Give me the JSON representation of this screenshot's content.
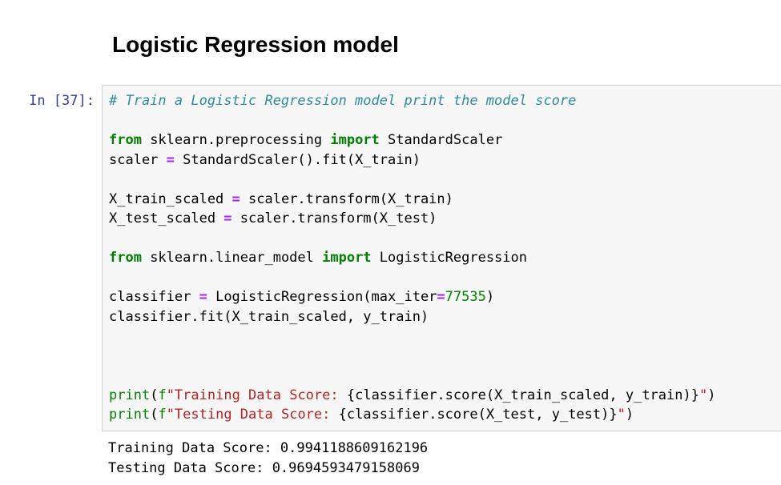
{
  "heading": {
    "title": "Logistic Regression model"
  },
  "cell": {
    "prompt_label": "In [37]:",
    "colors": {
      "prompt": "#303f9f",
      "input_background": "#f7f7f7",
      "input_border": "#cfcfcf",
      "comment": "#2e8b9b",
      "keyword": "#008000",
      "builtin": "#008000",
      "string": "#ba2121",
      "operator": "#aa22ff",
      "number": "#008000",
      "plain": "#000000"
    },
    "code_lines": [
      [
        [
          "c",
          "# Train a Logistic Regression model print the model score"
        ]
      ],
      [],
      [
        [
          "k",
          "from"
        ],
        [
          "p",
          " sklearn.preprocessing "
        ],
        [
          "k",
          "import"
        ],
        [
          "p",
          " StandardScaler"
        ]
      ],
      [
        [
          "p",
          "scaler "
        ],
        [
          "o",
          "="
        ],
        [
          "p",
          " StandardScaler().fit(X_train)"
        ]
      ],
      [],
      [
        [
          "p",
          "X_train_scaled "
        ],
        [
          "o",
          "="
        ],
        [
          "p",
          " scaler.transform(X_train)"
        ]
      ],
      [
        [
          "p",
          "X_test_scaled "
        ],
        [
          "o",
          "="
        ],
        [
          "p",
          " scaler.transform(X_test)"
        ]
      ],
      [],
      [
        [
          "k",
          "from"
        ],
        [
          "p",
          " sklearn.linear_model "
        ],
        [
          "k",
          "import"
        ],
        [
          "p",
          " LogisticRegression"
        ]
      ],
      [],
      [
        [
          "p",
          "classifier "
        ],
        [
          "o",
          "="
        ],
        [
          "p",
          " LogisticRegression(max_iter"
        ],
        [
          "o",
          "="
        ],
        [
          "n",
          "77535"
        ],
        [
          "p",
          ")"
        ]
      ],
      [
        [
          "p",
          "classifier.fit(X_train_scaled, y_train)"
        ]
      ],
      [],
      [],
      [],
      [
        [
          "b",
          "print"
        ],
        [
          "p",
          "("
        ],
        [
          "f",
          "f"
        ],
        [
          "s",
          "\"Training Data Score: "
        ],
        [
          "p",
          "{classifier.score(X_train_scaled, y_train)}"
        ],
        [
          "s",
          "\""
        ],
        [
          "p",
          ")"
        ]
      ],
      [
        [
          "b",
          "print"
        ],
        [
          "p",
          "("
        ],
        [
          "f",
          "f"
        ],
        [
          "s",
          "\"Testing Data Score: "
        ],
        [
          "p",
          "{classifier.score(X_test, y_test)}"
        ],
        [
          "s",
          "\""
        ],
        [
          "p",
          ")"
        ]
      ]
    ]
  },
  "output": {
    "lines": [
      "Training Data Score: 0.9941188609162196",
      "Testing Data Score: 0.9694593479158069"
    ]
  }
}
